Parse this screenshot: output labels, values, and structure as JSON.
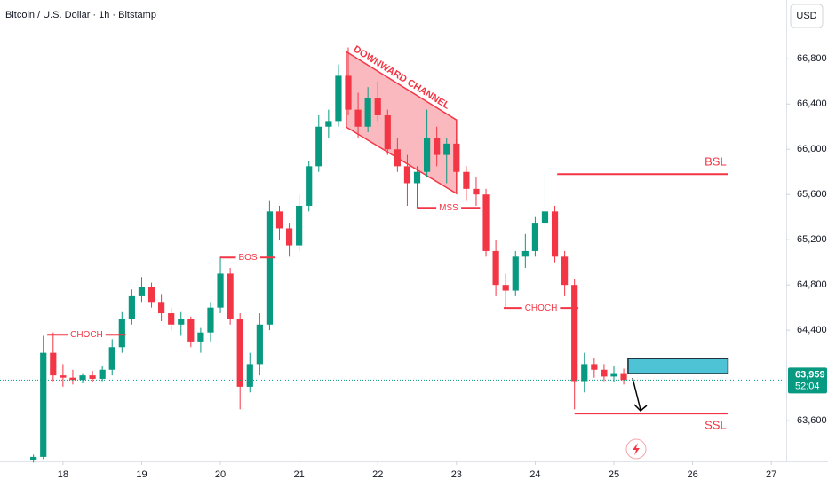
{
  "chart_data": {
    "type": "candlestick",
    "title": "Bitcoin / U.S. Dollar · 1h · Bitstamp",
    "currency": "USD",
    "x": [
      17.625,
      17.75,
      17.875,
      18.0,
      18.125,
      18.25,
      18.375,
      18.5,
      18.625,
      18.75,
      18.875,
      19.0,
      19.125,
      19.25,
      19.375,
      19.5,
      19.625,
      19.75,
      19.875,
      20.0,
      20.125,
      20.25,
      20.375,
      20.5,
      20.625,
      20.75,
      20.875,
      21.0,
      21.125,
      21.25,
      21.375,
      21.5,
      21.625,
      21.75,
      21.875,
      22.0,
      22.125,
      22.25,
      22.375,
      22.5,
      22.625,
      22.75,
      22.875,
      23.0,
      23.125,
      23.25,
      23.375,
      23.5,
      23.625,
      23.75,
      23.875,
      24.0,
      24.125,
      24.25,
      24.375,
      24.5,
      24.625,
      24.75,
      24.875,
      25.0,
      25.125
    ],
    "open": [
      63250,
      63280,
      64200,
      64000,
      63980,
      63960,
      64000,
      63970,
      64050,
      64250,
      64500,
      64700,
      64780,
      64650,
      64550,
      64450,
      64500,
      64300,
      64380,
      64600,
      64900,
      64500,
      63900,
      64100,
      64450,
      65450,
      65300,
      65150,
      65500,
      65850,
      66200,
      66250,
      66650,
      66350,
      66200,
      66450,
      66300,
      66000,
      65850,
      65700,
      65800,
      66100,
      65950,
      66050,
      65800,
      65650,
      65600,
      65100,
      64800,
      64750,
      65050,
      65100,
      65350,
      65450,
      65050,
      64800,
      63950,
      64100,
      64050,
      63990,
      64020
    ],
    "high": [
      63300,
      64350,
      64380,
      64100,
      64050,
      64020,
      64040,
      64080,
      64320,
      64560,
      64760,
      64870,
      64820,
      64720,
      64600,
      64560,
      64520,
      64420,
      64650,
      65050,
      64950,
      64550,
      64200,
      64550,
      65550,
      65500,
      65350,
      65600,
      65900,
      66300,
      66350,
      66750,
      66900,
      66500,
      66550,
      66600,
      66350,
      66100,
      65950,
      65850,
      66350,
      66200,
      66100,
      66100,
      65850,
      65750,
      65650,
      65200,
      64900,
      65100,
      65250,
      65400,
      65800,
      65500,
      65100,
      64850,
      64200,
      64150,
      64100,
      64080,
      64060
    ],
    "low": [
      63230,
      63260,
      63950,
      63900,
      63920,
      63930,
      63940,
      63950,
      64000,
      64200,
      64450,
      64650,
      64600,
      64480,
      64400,
      64350,
      64250,
      64200,
      64300,
      64550,
      64450,
      63700,
      63850,
      64000,
      64400,
      65200,
      65050,
      65100,
      65450,
      65800,
      66100,
      66200,
      66300,
      66100,
      66150,
      66250,
      65950,
      65800,
      65500,
      65480,
      65750,
      65850,
      65700,
      65750,
      65550,
      65500,
      65050,
      64700,
      64600,
      64700,
      64950,
      65050,
      65300,
      65000,
      64700,
      63700,
      63850,
      63980,
      63950,
      63940,
      63920
    ],
    "close": [
      63280,
      64200,
      64000,
      63980,
      63960,
      64000,
      63970,
      64050,
      64250,
      64500,
      64700,
      64780,
      64650,
      64550,
      64450,
      64500,
      64300,
      64380,
      64600,
      64900,
      64500,
      63900,
      64100,
      64450,
      65450,
      65300,
      65150,
      65500,
      65850,
      66200,
      66250,
      66650,
      66350,
      66200,
      66450,
      66300,
      66000,
      65850,
      65700,
      65800,
      66100,
      65950,
      66050,
      65800,
      65650,
      65600,
      65100,
      64800,
      64750,
      65050,
      65100,
      65350,
      65450,
      65050,
      64800,
      63950,
      64100,
      64050,
      63990,
      64020,
      63959
    ],
    "up_color": "#089981",
    "down_color": "#f23645",
    "xlim": [
      17.2,
      27.19
    ],
    "ylim": [
      63240,
      67320
    ],
    "xticks": [
      18,
      19,
      20,
      21,
      22,
      23,
      24,
      25,
      26,
      27
    ],
    "yticks": [
      {
        "value": 63600,
        "label": "63,600"
      },
      {
        "value": 64400,
        "label": "64,400"
      },
      {
        "value": 64800,
        "label": "64,800"
      },
      {
        "value": 65200,
        "label": "65,200"
      },
      {
        "value": 65600,
        "label": "65,600"
      },
      {
        "value": 66000,
        "label": "66,000"
      },
      {
        "value": 66400,
        "label": "66,400"
      },
      {
        "value": 66800,
        "label": "66,800"
      }
    ],
    "last_price": {
      "value": 63959,
      "label": "63,959"
    },
    "countdown": "52:04",
    "annotation_color": "#f23645",
    "levels": [
      {
        "label": "CHOCH",
        "value": 64360,
        "x": [
          17.8,
          18.8
        ],
        "label_position": "center"
      },
      {
        "label": "BOS",
        "value": 65043,
        "x": [
          20.0,
          20.7
        ],
        "label_position": "center"
      },
      {
        "label": "MSS",
        "value": 65482,
        "x": [
          22.5,
          23.3
        ],
        "label_position": "center"
      },
      {
        "label": "CHOCH",
        "value": 64596,
        "x": [
          23.6,
          24.55
        ],
        "label_position": "center"
      },
      {
        "label": "BSL",
        "value": 65780,
        "x": [
          24.28,
          26.45
        ],
        "label_position": "above"
      },
      {
        "label": "SSL",
        "value": 63663,
        "x": [
          24.5,
          26.45
        ],
        "label_position": "below"
      }
    ],
    "channel": {
      "label": "DOWNWARD CHANNEL",
      "x": [
        21.6,
        23.0
      ],
      "top": [
        66863,
        66259
      ],
      "bottom": [
        66196,
        65608
      ]
    },
    "zone": {
      "x": [
        25.18,
        26.45
      ],
      "y": [
        64016,
        64149
      ],
      "color": "#4fc3d6"
    }
  }
}
